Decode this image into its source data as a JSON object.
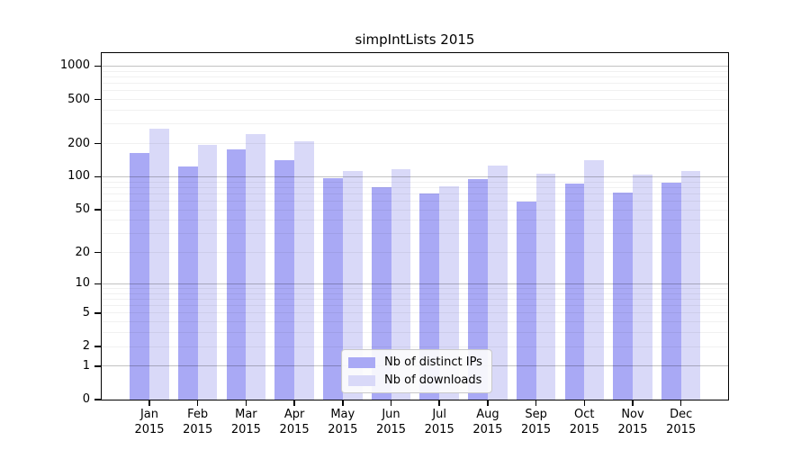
{
  "chart_data": {
    "type": "bar",
    "title": "simpIntLists 2015",
    "categories": [
      "Jan",
      "Feb",
      "Mar",
      "Apr",
      "May",
      "Jun",
      "Jul",
      "Aug",
      "Sep",
      "Oct",
      "Nov",
      "Dec"
    ],
    "year_label": "2015",
    "series": [
      {
        "name": "Nb of distinct IPs",
        "color": "#a9a9f5",
        "values": [
          165,
          124,
          177,
          141,
          97,
          80,
          70,
          95,
          60,
          86,
          72,
          89
        ]
      },
      {
        "name": "Nb of downloads",
        "color": "#d9d9f8",
        "values": [
          273,
          195,
          244,
          209,
          113,
          118,
          82,
          127,
          106,
          141,
          105,
          114
        ]
      }
    ],
    "y_ticks": [
      0,
      1,
      2,
      5,
      10,
      20,
      50,
      100,
      200,
      500,
      1000
    ],
    "y_scale": "log10(1+v)",
    "ylim": [
      0,
      1350
    ],
    "grid": true,
    "legend_position": "lower-center",
    "axis_color": "#000000",
    "background": "#ffffff"
  }
}
